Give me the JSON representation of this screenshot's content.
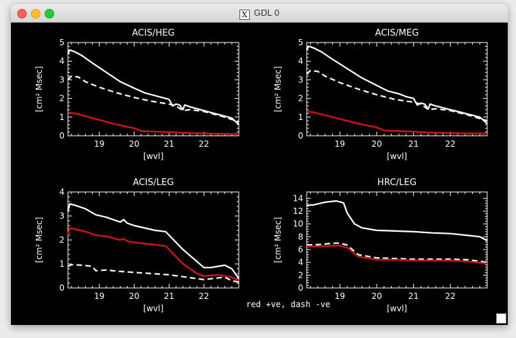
{
  "window": {
    "title": "GDL 0",
    "title_icon": "x11-icon"
  },
  "caption": "red +ve, dash -ve",
  "colors": {
    "red": "#c41414",
    "white": "#ffffff",
    "background": "#000000"
  },
  "chart_data": [
    {
      "type": "line",
      "title": "ACIS/HEG",
      "xlabel": "[wvl]",
      "ylabel": "[cm² Msec]",
      "xlim": [
        18.1,
        23.0
      ],
      "ylim": [
        0,
        5
      ],
      "xticks": [
        19,
        20,
        21,
        22
      ],
      "yticks": [
        0,
        1,
        2,
        3,
        4,
        5
      ],
      "series": [
        {
          "style": "solid-white",
          "x": [
            18.1,
            18.15,
            18.3,
            18.5,
            18.8,
            19.2,
            19.6,
            20.0,
            20.3,
            20.6,
            20.8,
            21.0,
            21.1,
            21.2,
            21.3,
            21.4,
            21.45,
            21.6,
            21.8,
            22.0,
            22.3,
            22.6,
            22.8,
            23.0
          ],
          "y": [
            4.4,
            4.6,
            4.5,
            4.3,
            3.9,
            3.4,
            2.9,
            2.55,
            2.3,
            2.15,
            2.05,
            1.95,
            1.6,
            1.7,
            1.65,
            1.4,
            1.65,
            1.55,
            1.45,
            1.35,
            1.2,
            1.05,
            0.95,
            0.6
          ]
        },
        {
          "style": "dashed-white",
          "x": [
            18.1,
            18.2,
            18.4,
            18.6,
            19.0,
            19.5,
            20.0,
            20.5,
            21.0,
            21.2,
            21.4,
            21.6,
            22.0,
            22.5,
            23.0
          ],
          "y": [
            3.0,
            3.2,
            3.15,
            2.9,
            2.6,
            2.3,
            2.05,
            1.85,
            1.7,
            1.6,
            1.35,
            1.4,
            1.3,
            1.05,
            0.75
          ]
        },
        {
          "style": "solid-red",
          "x": [
            18.1,
            18.3,
            18.6,
            19.0,
            19.5,
            20.0,
            20.2,
            20.6,
            21.0,
            21.5,
            22.0,
            22.5,
            23.0
          ],
          "y": [
            1.25,
            1.2,
            1.05,
            0.85,
            0.6,
            0.4,
            0.25,
            0.22,
            0.2,
            0.15,
            0.12,
            0.1,
            0.1
          ]
        }
      ]
    },
    {
      "type": "line",
      "title": "ACIS/MEG",
      "xlabel": "[wvl]",
      "ylabel": "[cm² Msec]",
      "xlim": [
        18.1,
        23.0
      ],
      "ylim": [
        0,
        5
      ],
      "xticks": [
        19,
        20,
        21,
        22
      ],
      "yticks": [
        0,
        1,
        2,
        3,
        4,
        5
      ],
      "series": [
        {
          "style": "solid-white",
          "x": [
            18.1,
            18.15,
            18.3,
            18.5,
            18.8,
            19.2,
            19.6,
            20.0,
            20.3,
            20.6,
            20.8,
            21.0,
            21.1,
            21.2,
            21.3,
            21.4,
            21.45,
            21.6,
            21.8,
            22.0,
            22.3,
            22.6,
            22.8,
            23.0
          ],
          "y": [
            4.6,
            4.8,
            4.7,
            4.5,
            4.1,
            3.6,
            3.1,
            2.7,
            2.4,
            2.25,
            2.1,
            2.0,
            1.65,
            1.75,
            1.7,
            1.45,
            1.7,
            1.6,
            1.5,
            1.4,
            1.25,
            1.1,
            1.0,
            0.65
          ]
        },
        {
          "style": "dashed-white",
          "x": [
            18.1,
            18.2,
            18.4,
            18.6,
            19.0,
            19.5,
            20.0,
            20.5,
            21.0,
            21.2,
            21.4,
            21.6,
            22.0,
            22.5,
            23.0
          ],
          "y": [
            3.3,
            3.5,
            3.45,
            3.2,
            2.85,
            2.5,
            2.2,
            1.95,
            1.8,
            1.7,
            1.4,
            1.45,
            1.35,
            1.1,
            0.8
          ]
        },
        {
          "style": "solid-red",
          "x": [
            18.1,
            18.3,
            18.6,
            19.0,
            19.5,
            20.0,
            20.2,
            20.6,
            21.0,
            21.5,
            22.0,
            22.5,
            23.0
          ],
          "y": [
            1.3,
            1.25,
            1.1,
            0.9,
            0.65,
            0.45,
            0.28,
            0.25,
            0.22,
            0.17,
            0.14,
            0.12,
            0.12
          ]
        }
      ]
    },
    {
      "type": "line",
      "title": "ACIS/LEG",
      "xlabel": "[wvl]",
      "ylabel": "[cm² Msec]",
      "xlim": [
        18.1,
        23.0
      ],
      "ylim": [
        0,
        4
      ],
      "xticks": [
        19,
        20,
        21,
        22
      ],
      "yticks": [
        0,
        1,
        2,
        3,
        4
      ],
      "series": [
        {
          "style": "solid-white",
          "x": [
            18.1,
            18.15,
            18.3,
            18.6,
            18.9,
            19.2,
            19.6,
            19.7,
            19.8,
            20.0,
            20.3,
            20.6,
            20.9,
            21.0,
            21.2,
            21.4,
            21.6,
            21.8,
            22.0,
            22.2,
            22.4,
            22.6,
            22.8,
            23.0
          ],
          "y": [
            3.2,
            3.5,
            3.45,
            3.3,
            3.05,
            2.95,
            2.75,
            2.85,
            2.7,
            2.6,
            2.5,
            2.4,
            2.35,
            2.2,
            1.9,
            1.6,
            1.35,
            1.1,
            0.85,
            0.85,
            0.9,
            0.95,
            0.8,
            0.4
          ]
        },
        {
          "style": "dashed-white",
          "x": [
            18.1,
            18.2,
            18.5,
            18.8,
            18.9,
            19.2,
            19.5,
            20.0,
            20.5,
            21.0,
            21.5,
            22.0,
            22.3,
            22.6,
            22.8,
            23.0
          ],
          "y": [
            0.9,
            0.97,
            0.95,
            0.9,
            0.72,
            0.75,
            0.7,
            0.65,
            0.6,
            0.55,
            0.45,
            0.35,
            0.4,
            0.45,
            0.3,
            0.25
          ]
        },
        {
          "style": "solid-red",
          "x": [
            18.1,
            18.15,
            18.3,
            18.6,
            18.9,
            19.2,
            19.6,
            19.7,
            19.8,
            20.0,
            20.3,
            20.6,
            20.9,
            21.0,
            21.2,
            21.4,
            21.6,
            21.8,
            22.0,
            22.2,
            22.4,
            22.6,
            22.8,
            23.0
          ],
          "y": [
            2.2,
            2.5,
            2.45,
            2.35,
            2.2,
            2.15,
            2.0,
            2.05,
            1.95,
            1.9,
            1.85,
            1.8,
            1.75,
            1.6,
            1.3,
            1.0,
            0.8,
            0.6,
            0.5,
            0.52,
            0.55,
            0.5,
            0.45,
            0.3
          ]
        }
      ]
    },
    {
      "type": "line",
      "title": "HRC/LEG",
      "xlabel": "[wvl]",
      "ylabel": "[cm² Msec]",
      "xlim": [
        18.1,
        23.0
      ],
      "ylim": [
        0,
        15
      ],
      "xticks": [
        19,
        20,
        21,
        22
      ],
      "yticks": [
        0,
        2,
        4,
        6,
        8,
        10,
        12,
        14
      ],
      "series": [
        {
          "style": "solid-white",
          "x": [
            18.1,
            18.3,
            18.6,
            18.9,
            19.1,
            19.2,
            19.4,
            19.6,
            20.0,
            20.5,
            21.0,
            21.5,
            22.0,
            22.5,
            22.8,
            23.0
          ],
          "y": [
            12.9,
            13.0,
            13.4,
            13.6,
            13.3,
            11.7,
            10.0,
            9.4,
            9.0,
            8.9,
            8.8,
            8.6,
            8.5,
            8.2,
            8.0,
            7.4
          ]
        },
        {
          "style": "dashed-white",
          "x": [
            18.1,
            18.5,
            18.8,
            19.0,
            19.2,
            19.5,
            20.0,
            20.5,
            21.0,
            21.5,
            22.0,
            22.5,
            23.0
          ],
          "y": [
            6.7,
            6.8,
            7.0,
            7.0,
            6.7,
            5.2,
            4.7,
            4.6,
            4.5,
            4.5,
            4.5,
            4.4,
            4.0
          ]
        },
        {
          "style": "solid-red",
          "x": [
            18.1,
            18.5,
            18.8,
            19.0,
            19.2,
            19.5,
            20.0,
            20.5,
            21.0,
            21.5,
            22.0,
            22.5,
            23.0
          ],
          "y": [
            6.5,
            6.5,
            6.6,
            6.6,
            6.3,
            4.9,
            4.4,
            4.4,
            4.3,
            4.3,
            4.3,
            4.1,
            3.8
          ]
        }
      ]
    }
  ]
}
